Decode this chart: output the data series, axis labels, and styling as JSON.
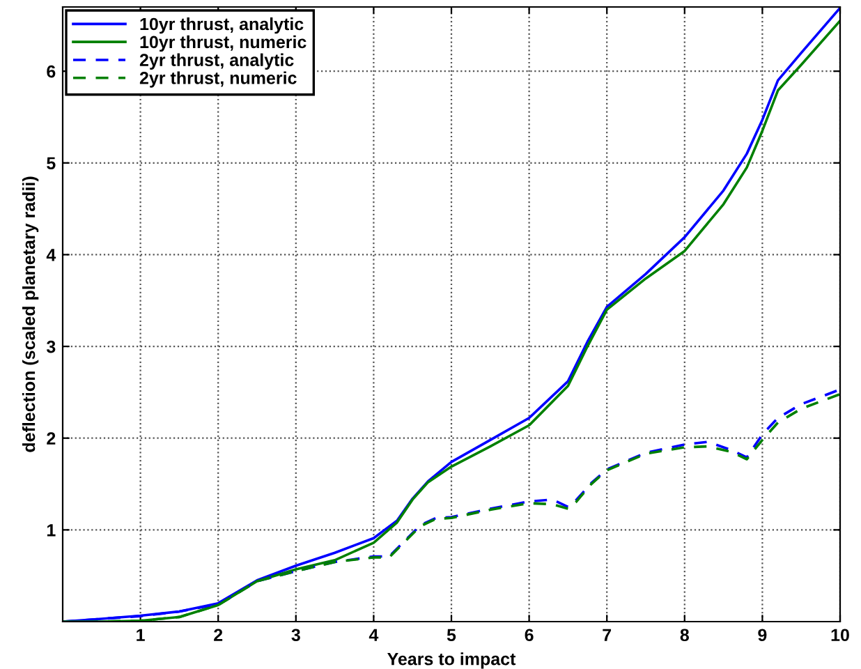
{
  "chart_data": {
    "type": "line",
    "xlabel": "Years to impact",
    "ylabel": "deflection (scaled planetary radii)",
    "xlim": [
      0,
      10
    ],
    "ylim": [
      0,
      6.7
    ],
    "xticks": [
      1,
      2,
      3,
      4,
      5,
      6,
      7,
      8,
      9,
      10
    ],
    "yticks": [
      1,
      2,
      3,
      4,
      5,
      6
    ],
    "grid": true,
    "legend": "top left",
    "series": [
      {
        "name": "10yr thrust, analytic",
        "color": "#0000ff",
        "line_style": "solid",
        "x": [
          0,
          0.5,
          1,
          1.5,
          2,
          2.5,
          3,
          3.5,
          4,
          4.3,
          4.5,
          4.7,
          5,
          5.5,
          6,
          6.5,
          6.75,
          7,
          7.5,
          8,
          8.5,
          8.8,
          9,
          9.2,
          9.5,
          10
        ],
        "values": [
          0,
          0.03,
          0.065,
          0.11,
          0.2,
          0.45,
          0.61,
          0.75,
          0.91,
          1.1,
          1.34,
          1.53,
          1.74,
          1.98,
          2.22,
          2.62,
          3.05,
          3.43,
          3.79,
          4.19,
          4.7,
          5.1,
          5.47,
          5.9,
          6.2,
          6.69
        ]
      },
      {
        "name": "10yr thrust, numeric",
        "color": "#008000",
        "line_style": "solid",
        "x": [
          0,
          0.5,
          1,
          1.5,
          2,
          2.5,
          3,
          3.5,
          4,
          4.3,
          4.5,
          4.7,
          5,
          5.5,
          6,
          6.5,
          6.75,
          7,
          7.5,
          8,
          8.5,
          8.8,
          9,
          9.2,
          9.5,
          10
        ],
        "values": [
          0,
          0.0,
          0.01,
          0.05,
          0.18,
          0.44,
          0.57,
          0.67,
          0.86,
          1.08,
          1.33,
          1.52,
          1.69,
          1.91,
          2.14,
          2.57,
          3.0,
          3.4,
          3.74,
          4.04,
          4.55,
          4.95,
          5.35,
          5.79,
          6.07,
          6.55
        ]
      },
      {
        "name": "2yr thrust, analytic",
        "color": "#0000ff",
        "line_style": "dashed",
        "x": [
          0,
          0.5,
          1,
          1.5,
          2,
          2.5,
          3,
          3.5,
          4,
          4.2,
          4.4,
          4.6,
          4.8,
          5,
          5.5,
          6,
          6.3,
          6.5,
          6.6,
          6.8,
          7,
          7.5,
          8,
          8.3,
          8.6,
          8.8,
          9,
          9.2,
          9.5,
          10
        ],
        "values": [
          0,
          0.03,
          0.06,
          0.11,
          0.19,
          0.44,
          0.55,
          0.65,
          0.71,
          0.71,
          0.88,
          1.05,
          1.13,
          1.14,
          1.23,
          1.31,
          1.33,
          1.25,
          1.32,
          1.51,
          1.66,
          1.84,
          1.93,
          1.96,
          1.87,
          1.79,
          2.04,
          2.22,
          2.37,
          2.53
        ]
      },
      {
        "name": "2yr thrust, numeric",
        "color": "#008000",
        "line_style": "dashed",
        "x": [
          0,
          0.5,
          1,
          1.5,
          2,
          2.5,
          3,
          3.5,
          4,
          4.2,
          4.4,
          4.6,
          4.8,
          5,
          5.5,
          6,
          6.3,
          6.5,
          6.6,
          6.8,
          7,
          7.5,
          8,
          8.3,
          8.6,
          8.8,
          9,
          9.2,
          9.5,
          10
        ],
        "values": [
          0,
          0.0,
          0.01,
          0.05,
          0.18,
          0.44,
          0.55,
          0.65,
          0.7,
          0.7,
          0.87,
          1.04,
          1.12,
          1.13,
          1.22,
          1.29,
          1.28,
          1.23,
          1.3,
          1.5,
          1.65,
          1.83,
          1.9,
          1.91,
          1.85,
          1.77,
          1.98,
          2.17,
          2.32,
          2.48
        ]
      }
    ]
  }
}
